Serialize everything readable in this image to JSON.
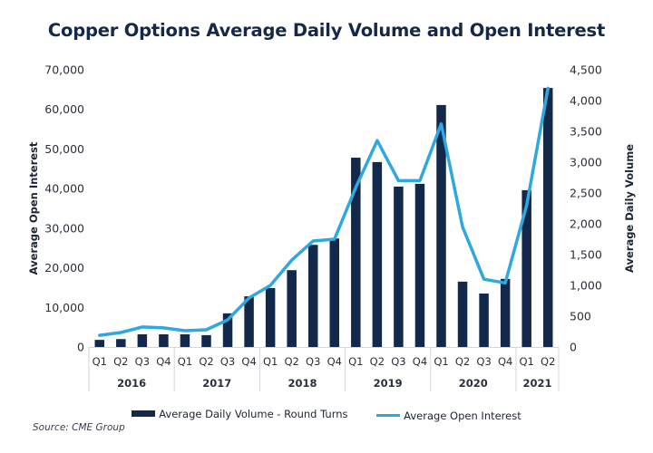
{
  "colors": {
    "bar": "#13294b",
    "line": "#2ea8df",
    "title": "#14284b",
    "separator": "#d3d6dc"
  },
  "legend": {
    "bar_label": "Average Daily Volume - Round Turns",
    "line_label": "Average Open Interest"
  },
  "source": "Source: CME Group",
  "chart_data": {
    "type": "bar+line",
    "title": "Copper Options Average Daily Volume and Open Interest",
    "xlabel": "",
    "ylabel_left": "Average Open Interest",
    "ylabel_right": "Average Daily Volume",
    "ylim_left": [
      0,
      70000
    ],
    "ylim_right": [
      0,
      4500
    ],
    "yticks_left": [
      "0",
      "10,000",
      "20,000",
      "30,000",
      "40,000",
      "50,000",
      "60,000",
      "70,000"
    ],
    "yticks_right": [
      "0",
      "500",
      "1,000",
      "1,500",
      "2,000",
      "2,500",
      "3,000",
      "3,500",
      "4,000",
      "4,500"
    ],
    "grid": false,
    "legend_position": "bottom",
    "categories": [
      "Q1",
      "Q2",
      "Q3",
      "Q4",
      "Q1",
      "Q2",
      "Q3",
      "Q4",
      "Q1",
      "Q2",
      "Q3",
      "Q4",
      "Q1",
      "Q2",
      "Q3",
      "Q4",
      "Q1",
      "Q2",
      "Q3",
      "Q4",
      "Q1",
      "Q2"
    ],
    "groups": [
      {
        "label": "2016",
        "count": 4
      },
      {
        "label": "2017",
        "count": 4
      },
      {
        "label": "2018",
        "count": 4
      },
      {
        "label": "2019",
        "count": 4
      },
      {
        "label": "2020",
        "count": 4
      },
      {
        "label": "2021",
        "count": 2
      }
    ],
    "series": [
      {
        "name": "Average Daily Volume - Round Turns",
        "type": "bar",
        "axis": "left",
        "values": [
          1800,
          2000,
          3200,
          3200,
          3200,
          3000,
          8500,
          12800,
          14900,
          19400,
          25800,
          27400,
          47800,
          46700,
          40500,
          41200,
          61100,
          16500,
          13500,
          17200,
          39600,
          65400
        ]
      },
      {
        "name": "Average Open Interest",
        "type": "line",
        "axis": "right",
        "values": [
          190,
          235,
          325,
          310,
          265,
          280,
          440,
          795,
          1000,
          1410,
          1720,
          1750,
          2590,
          3350,
          2700,
          2700,
          3620,
          1950,
          1100,
          1040,
          2300,
          4200
        ]
      }
    ]
  }
}
